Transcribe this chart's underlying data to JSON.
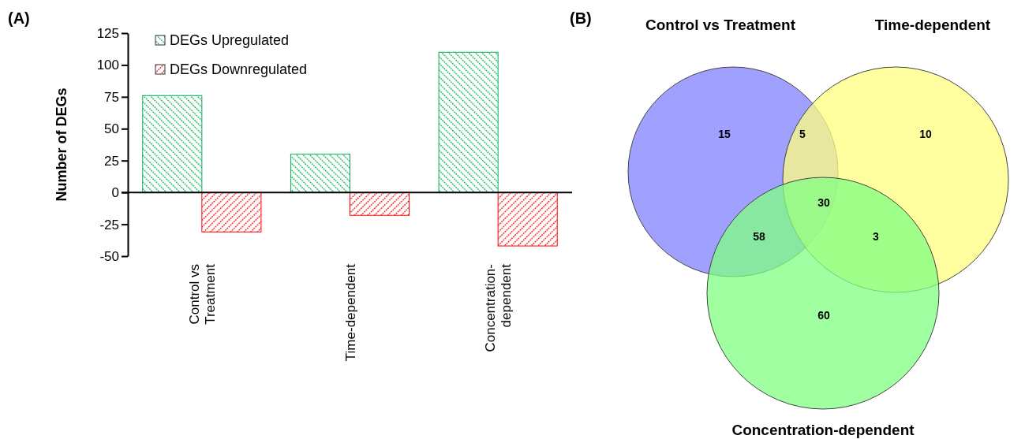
{
  "chart_data": [
    {
      "type": "bar",
      "title": "(A)",
      "ylabel": "Number of DEGs",
      "categories": [
        "Control vs Treatment",
        "Time-dependent",
        "Concentration-dependent"
      ],
      "series": [
        {
          "name": "DEGs Upregulated",
          "color": "#00b050",
          "values": [
            76,
            30,
            110
          ]
        },
        {
          "name": "DEGs Downregulated",
          "color": "#ff0000",
          "values": [
            -31,
            -18,
            -42
          ]
        }
      ],
      "ylim": [
        -50,
        125
      ],
      "yticks": [
        -50,
        -25,
        0,
        25,
        50,
        75,
        100,
        125
      ],
      "legend": "top left"
    },
    {
      "type": "other",
      "title": "(B)",
      "annotations": [
        "Control vs Treatment",
        "Time-dependent",
        "Concentration-dependent",
        "15",
        "5",
        "10",
        "58",
        "30",
        "3",
        "60"
      ]
    }
  ]
}
